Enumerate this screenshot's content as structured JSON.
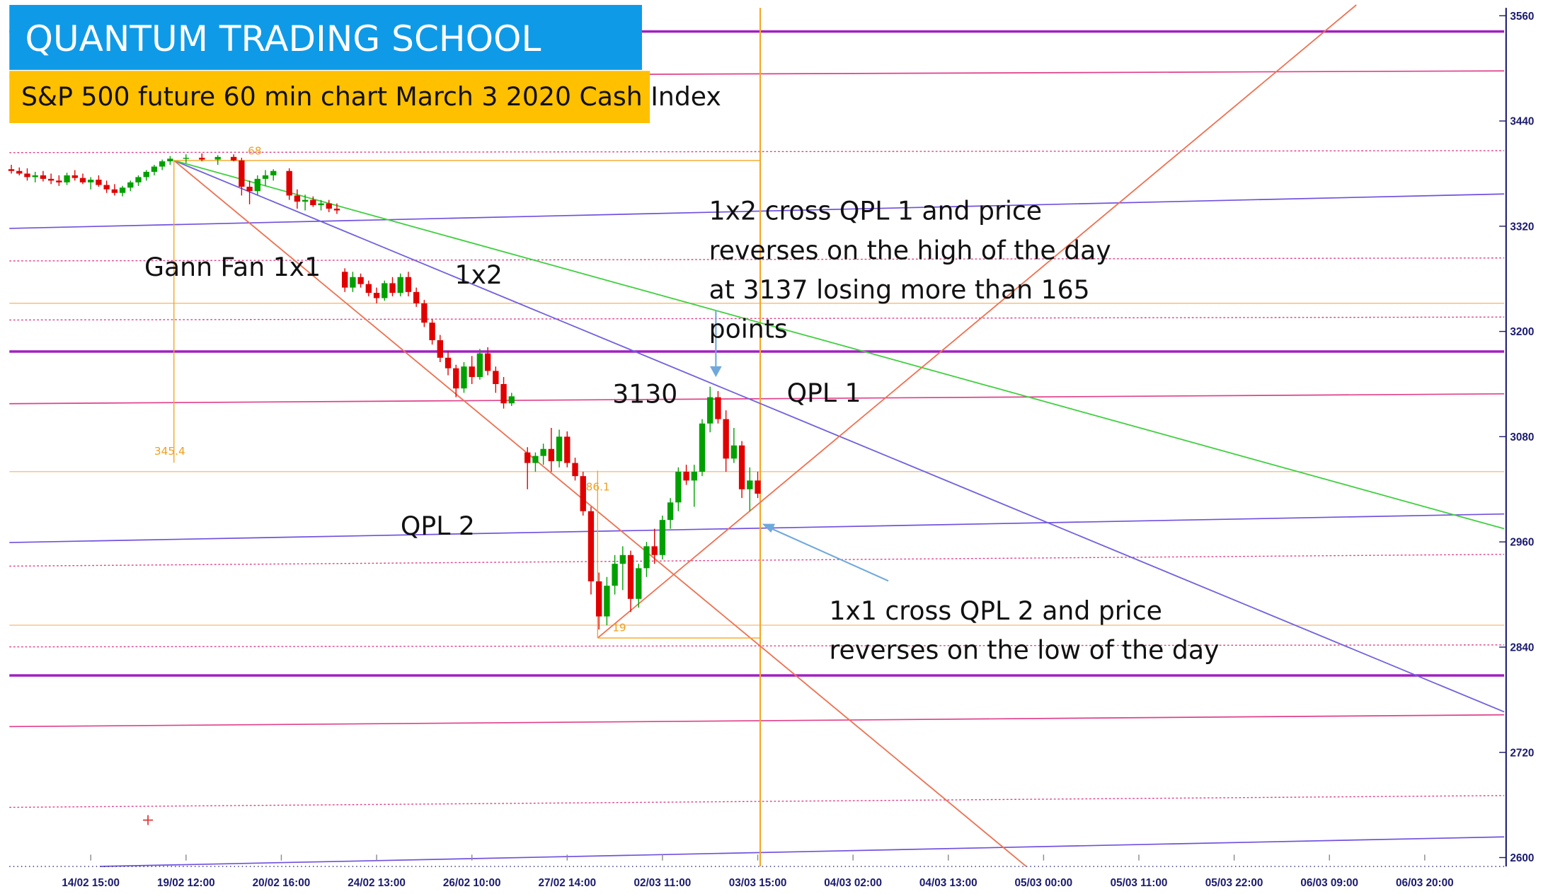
{
  "chart_data": {
    "type": "candlestick",
    "title": "QUANTUM TRADING SCHOOL",
    "subtitle": "S&P 500 future 60 min chart March 3 2020 Cash Index",
    "up_color": "#00a000",
    "down_color": "#e00000",
    "x": [
      0,
      1,
      2,
      3,
      4,
      5,
      6,
      7,
      8,
      9,
      10,
      11,
      12,
      13,
      14,
      15,
      16,
      17,
      18,
      19,
      20,
      22,
      24,
      26,
      28,
      29,
      30,
      31,
      32,
      33,
      35,
      36,
      37,
      38,
      39,
      40,
      41,
      42,
      43,
      44,
      45,
      46,
      47,
      48,
      49,
      50,
      51,
      52,
      53,
      54,
      55,
      56,
      57,
      58,
      59,
      60,
      61,
      62,
      63,
      65,
      66,
      67,
      68,
      69,
      70,
      71,
      72,
      73,
      74,
      75,
      76,
      77,
      78,
      79,
      80,
      81,
      82,
      83,
      84,
      85,
      86,
      87,
      88,
      89,
      90,
      91,
      92,
      93,
      94
    ],
    "open": [
      3385,
      3383,
      3380,
      3376,
      3378,
      3374,
      3372,
      3370,
      3378,
      3375,
      3370,
      3373,
      3367,
      3362,
      3358,
      3364,
      3370,
      3376,
      3382,
      3388,
      3394,
      3397,
      3398,
      3396,
      3399,
      3395,
      3365,
      3360,
      3374,
      3378,
      3383,
      3355,
      3348,
      3350,
      3344,
      3346,
      3340,
      3268,
      3250,
      3262,
      3254,
      3244,
      3238,
      3255,
      3244,
      3262,
      3245,
      3232,
      3210,
      3190,
      3170,
      3158,
      3135,
      3160,
      3148,
      3175,
      3155,
      3140,
      3118,
      3062,
      3050,
      3058,
      3066,
      3052,
      3080,
      3050,
      3035,
      2995,
      2915,
      2875,
      2910,
      2935,
      2945,
      2895,
      2930,
      2955,
      2945,
      2985,
      3005,
      3040,
      3030,
      3040,
      3095,
      3125,
      3100,
      3055,
      3070,
      3020,
      3030
    ],
    "high": [
      3390,
      3387,
      3386,
      3382,
      3383,
      3380,
      3378,
      3381,
      3384,
      3380,
      3376,
      3378,
      3372,
      3368,
      3366,
      3372,
      3378,
      3384,
      3390,
      3396,
      3400,
      3402,
      3403,
      3401,
      3402,
      3398,
      3372,
      3378,
      3384,
      3385,
      3386,
      3362,
      3356,
      3354,
      3350,
      3350,
      3346,
      3272,
      3268,
      3266,
      3258,
      3250,
      3258,
      3262,
      3266,
      3268,
      3250,
      3236,
      3214,
      3196,
      3178,
      3162,
      3165,
      3172,
      3180,
      3182,
      3160,
      3148,
      3130,
      3068,
      3062,
      3072,
      3090,
      3088,
      3086,
      3056,
      3040,
      3000,
      2925,
      2920,
      2945,
      2955,
      2950,
      2935,
      2960,
      2975,
      2990,
      3010,
      3045,
      3048,
      3048,
      3100,
      3137,
      3132,
      3110,
      3090,
      3075,
      3045,
      3040
    ],
    "low": [
      3380,
      3378,
      3372,
      3370,
      3371,
      3368,
      3366,
      3367,
      3372,
      3368,
      3362,
      3365,
      3358,
      3355,
      3354,
      3360,
      3366,
      3372,
      3378,
      3384,
      3390,
      3392,
      3394,
      3390,
      3394,
      3355,
      3345,
      3355,
      3366,
      3372,
      3350,
      3340,
      3338,
      3342,
      3338,
      3336,
      3334,
      3245,
      3245,
      3250,
      3240,
      3232,
      3235,
      3240,
      3240,
      3240,
      3228,
      3205,
      3185,
      3165,
      3150,
      3125,
      3130,
      3140,
      3145,
      3150,
      3130,
      3112,
      3115,
      3020,
      3040,
      3048,
      3040,
      3045,
      3045,
      3030,
      2990,
      2900,
      2860,
      2865,
      2900,
      2905,
      2880,
      2885,
      2920,
      2935,
      2940,
      2975,
      2995,
      3025,
      3000,
      3035,
      3085,
      3095,
      3040,
      3050,
      3010,
      2995,
      3010
    ],
    "close": [
      3383,
      3380,
      3376,
      3378,
      3374,
      3372,
      3370,
      3378,
      3375,
      3370,
      3373,
      3367,
      3362,
      3358,
      3364,
      3370,
      3376,
      3382,
      3388,
      3394,
      3397,
      3398,
      3396,
      3399,
      3395,
      3365,
      3360,
      3374,
      3378,
      3383,
      3355,
      3348,
      3350,
      3344,
      3346,
      3340,
      3338,
      3250,
      3262,
      3254,
      3244,
      3238,
      3255,
      3244,
      3262,
      3245,
      3232,
      3210,
      3190,
      3170,
      3158,
      3135,
      3160,
      3148,
      3175,
      3155,
      3140,
      3118,
      3126,
      3050,
      3058,
      3066,
      3052,
      3080,
      3050,
      3035,
      2995,
      2915,
      2875,
      2910,
      2935,
      2945,
      2895,
      2930,
      2955,
      2945,
      2985,
      3005,
      3040,
      3030,
      3040,
      3095,
      3125,
      3100,
      3055,
      3070,
      3020,
      3030,
      3015
    ],
    "xlim": [
      0,
      188
    ],
    "xticks": [
      {
        "value": 10,
        "label": "14/02 15:00"
      },
      {
        "value": 22,
        "label": "19/02 12:00"
      },
      {
        "value": 34,
        "label": "20/02 16:00"
      },
      {
        "value": 46,
        "label": "24/02 13:00"
      },
      {
        "value": 58,
        "label": "26/02 10:00"
      },
      {
        "value": 70,
        "label": "27/02 14:00"
      },
      {
        "value": 82,
        "label": "02/03 11:00"
      },
      {
        "value": 94,
        "label": "03/03 15:00"
      },
      {
        "value": 106,
        "label": "04/03 02:00"
      },
      {
        "value": 118,
        "label": "04/03 13:00"
      },
      {
        "value": 130,
        "label": "05/03 00:00"
      },
      {
        "value": 142,
        "label": "05/03 11:00"
      },
      {
        "value": 154,
        "label": "05/03 22:00"
      },
      {
        "value": 166,
        "label": "06/03 09:00"
      },
      {
        "value": 178,
        "label": "06/03 20:00"
      }
    ],
    "ylim": [
      2600,
      3560
    ],
    "yticks": [
      2600,
      2720,
      2840,
      2960,
      3080,
      3200,
      3320,
      3440,
      3560
    ],
    "annotations": [
      "Gann Fan 1x1",
      "1x2",
      "3130",
      "QPL 1",
      "QPL 2",
      "68",
      "345.4",
      "86.1",
      "19"
    ],
    "notes": [
      [
        "1x2 cross QPL 1 and price",
        "reverses on the high of the day",
        "at 3137 losing more than 165",
        "points"
      ],
      [
        "1x1 cross QPL 2 and price",
        "reverses on the low of the day"
      ]
    ]
  }
}
